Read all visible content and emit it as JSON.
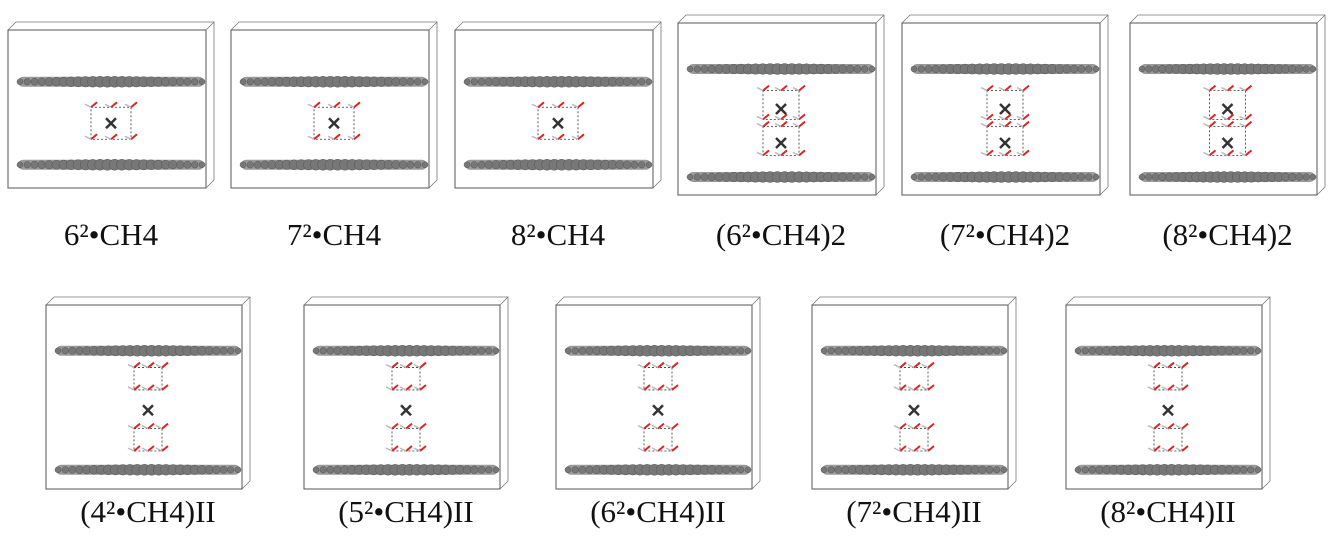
{
  "rows": [
    {
      "panels": [
        {
          "label": "6²•CH4"
        },
        {
          "label": "7²•CH4"
        },
        {
          "label": "8²•CH4"
        },
        {
          "label": "(6²•CH4)2"
        },
        {
          "label": "(7²•CH4)2"
        },
        {
          "label": "(8²•CH4)2"
        }
      ]
    },
    {
      "panels": [
        {
          "label": "(4²•CH4)II"
        },
        {
          "label": "(5²•CH4)II"
        },
        {
          "label": "(6²•CH4)II"
        },
        {
          "label": "(7²•CH4)II"
        },
        {
          "label": "(8²•CH4)II"
        }
      ]
    }
  ]
}
